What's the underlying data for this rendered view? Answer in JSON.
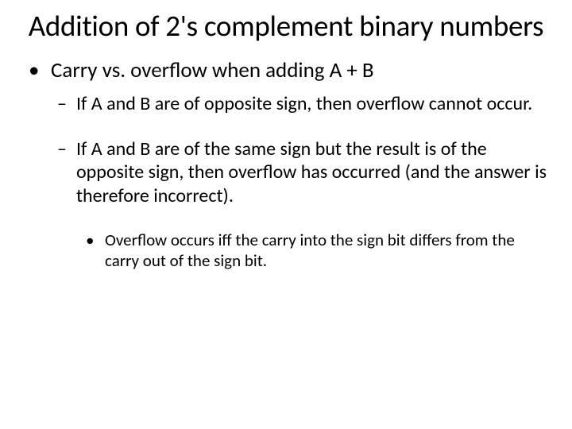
{
  "title": "Addition of 2's complement binary numbers",
  "bullets": {
    "level1": "Carry vs. overflow when adding A + B",
    "level2a": "If A and B are of opposite sign, then overflow cannot occur.",
    "level2b": "If A and B are of the same sign but the result is of the opposite sign, then overflow has occurred (and the answer is therefore incorrect).",
    "level3": "Overflow occurs iff the carry into the sign bit differs from the carry out of the sign bit."
  },
  "glyphs": {
    "dot": "•",
    "dash": "–"
  },
  "style": {
    "background_color": "#ffffff",
    "text_color": "#000000",
    "title_fontsize": 37,
    "level1_fontsize": 27,
    "level2_fontsize": 24,
    "level3_fontsize": 21,
    "font_family": "Calibri"
  }
}
